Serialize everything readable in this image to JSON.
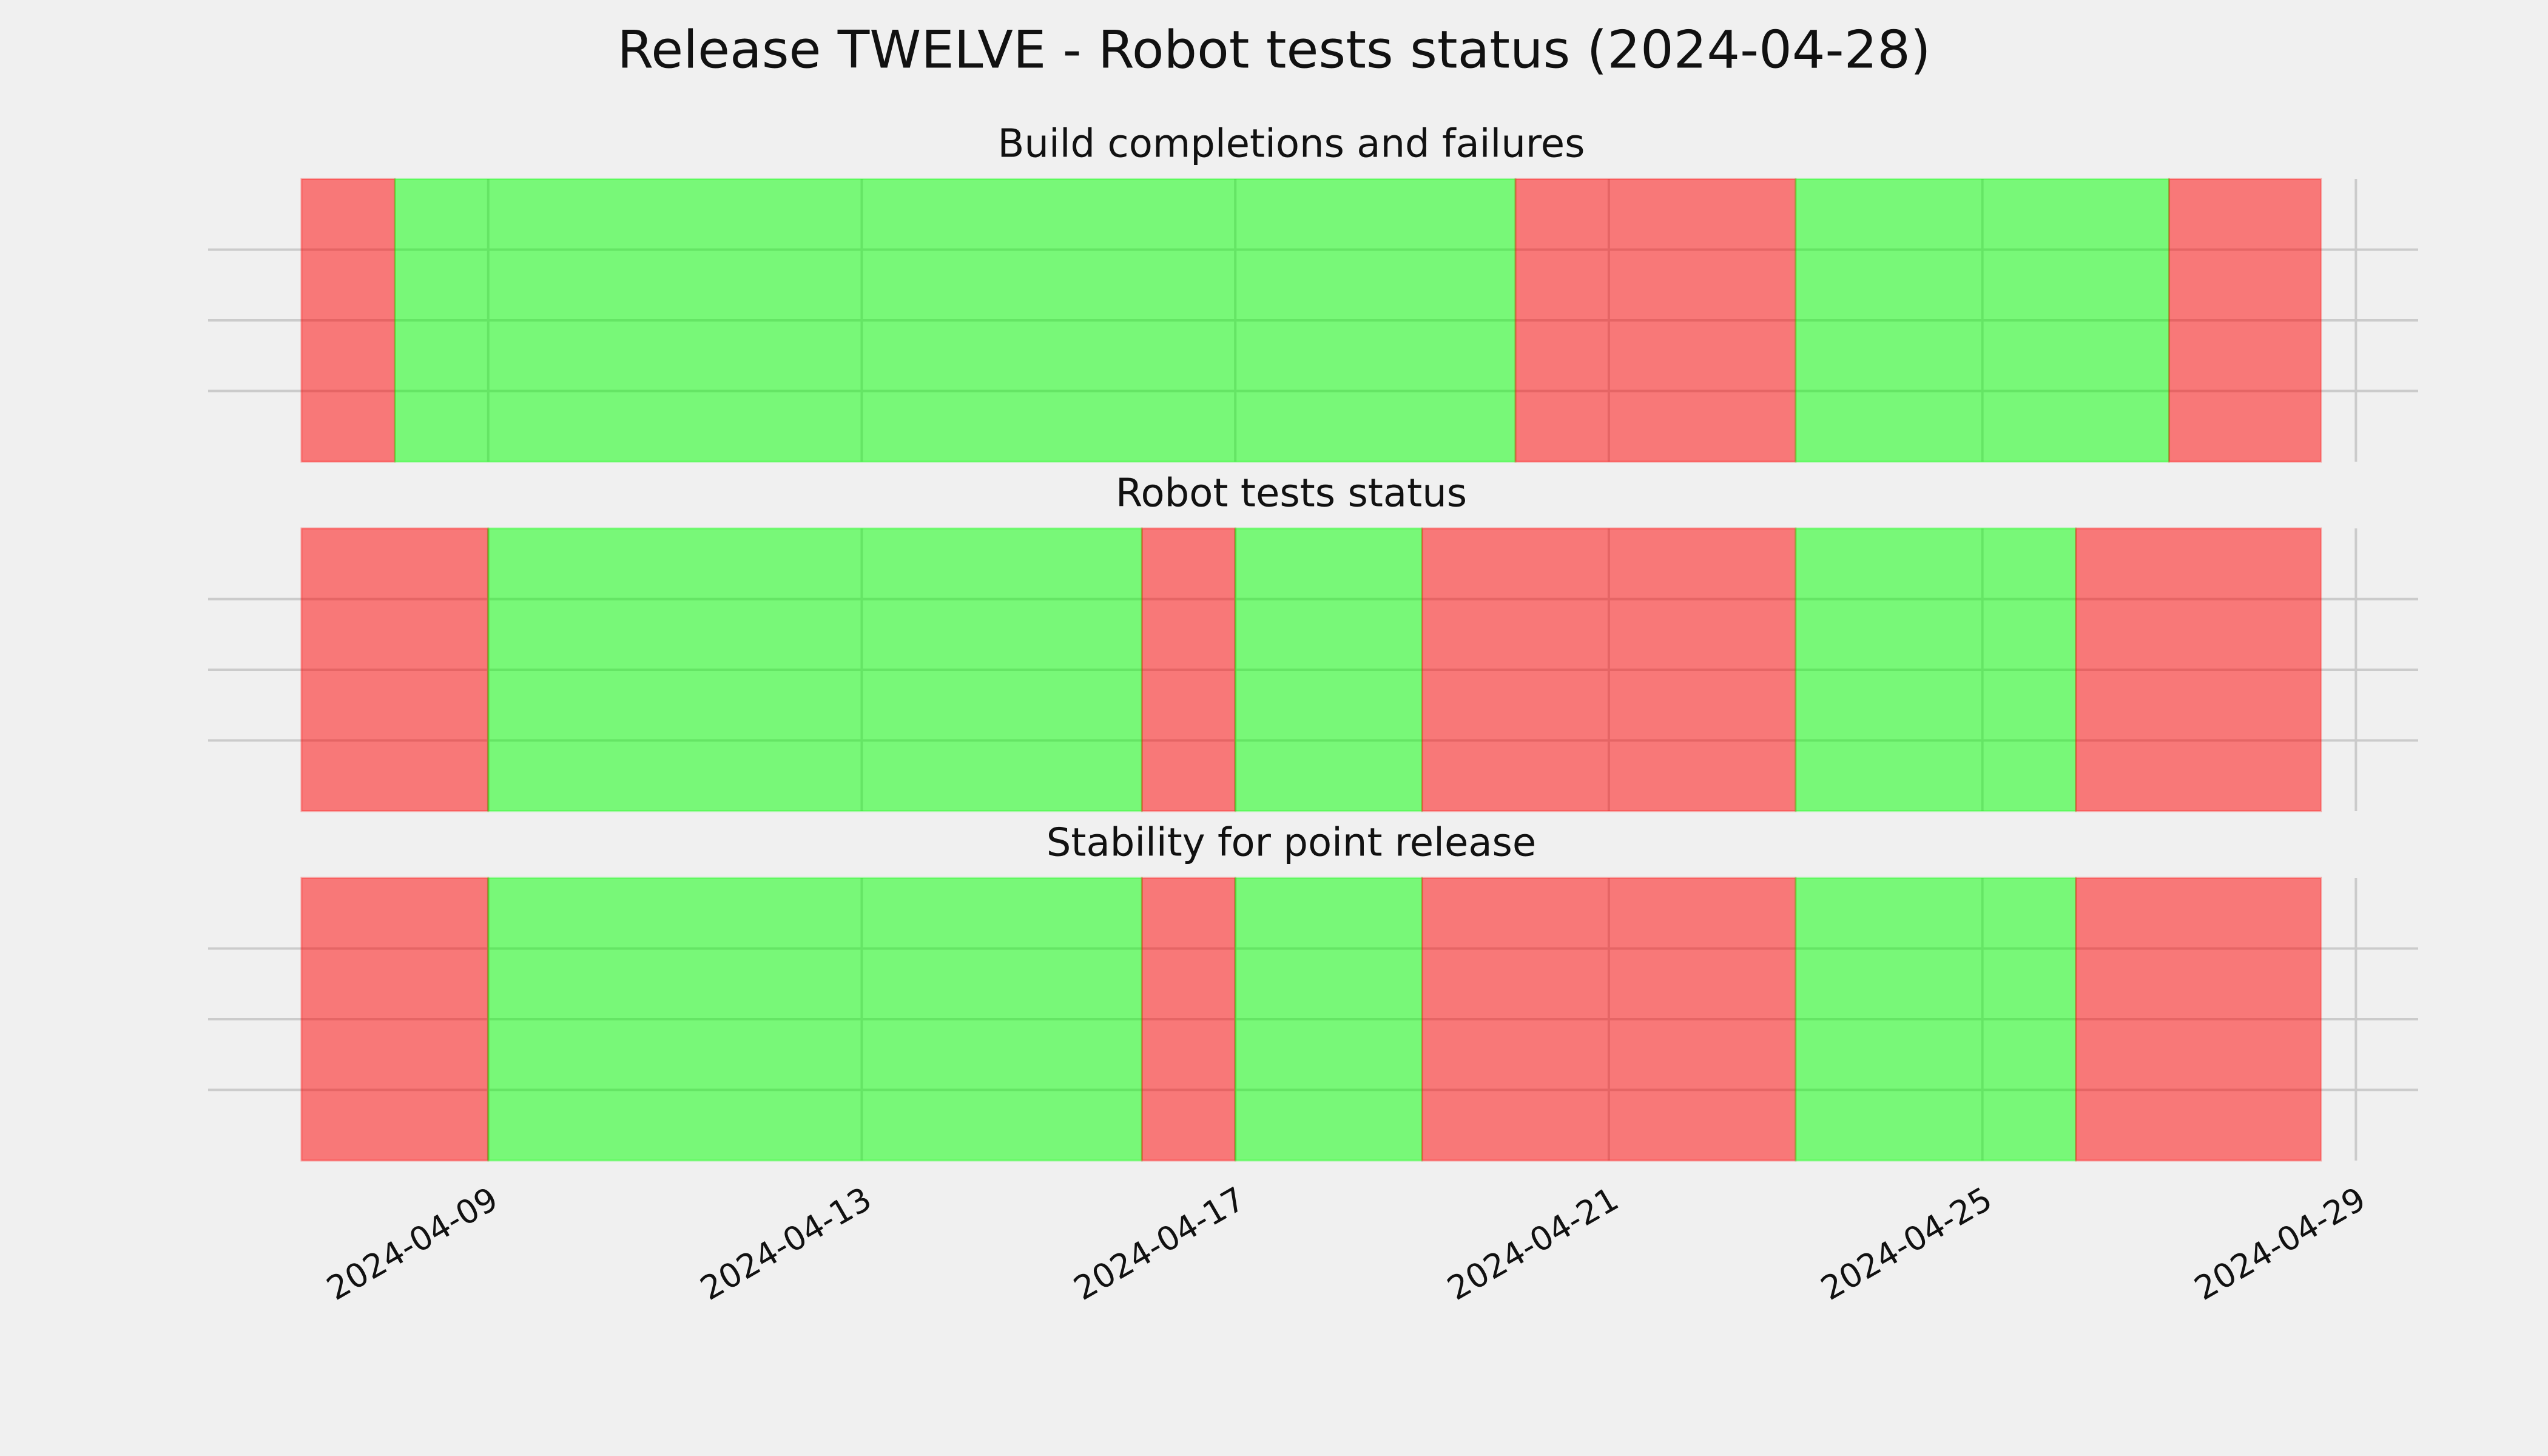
{
  "title": "Release TWELVE - Robot tests status (2024-04-28)",
  "chart_data": [
    {
      "type": "span",
      "title": "Build completions and failures",
      "xlim": [
        "2024-04-06",
        "2024-04-29T16:00"
      ],
      "xticks": [
        "2024-04-09",
        "2024-04-13",
        "2024-04-17",
        "2024-04-21",
        "2024-04-25",
        "2024-04-29"
      ],
      "ylim": [
        0,
        1
      ],
      "yticks": [
        0.25,
        0.5,
        0.75
      ],
      "grid": true,
      "alpha": 0.5,
      "spans": [
        {
          "start": "2024-04-07",
          "end": "2024-04-08",
          "color": "#ff0000"
        },
        {
          "start": "2024-04-08",
          "end": "2024-04-20",
          "color": "#00ff00"
        },
        {
          "start": "2024-04-20",
          "end": "2024-04-23",
          "color": "#ff0000"
        },
        {
          "start": "2024-04-23",
          "end": "2024-04-27",
          "color": "#00ff00"
        },
        {
          "start": "2024-04-27",
          "end": "2024-04-28T15:00",
          "color": "#ff0000"
        }
      ]
    },
    {
      "type": "span",
      "title": "Robot tests status",
      "xlim": [
        "2024-04-06",
        "2024-04-29T16:00"
      ],
      "xticks": [
        "2024-04-09",
        "2024-04-13",
        "2024-04-17",
        "2024-04-21",
        "2024-04-25",
        "2024-04-29"
      ],
      "ylim": [
        0,
        1
      ],
      "yticks": [
        0.25,
        0.5,
        0.75
      ],
      "grid": true,
      "alpha": 0.5,
      "spans": [
        {
          "start": "2024-04-07",
          "end": "2024-04-09",
          "color": "#ff0000"
        },
        {
          "start": "2024-04-09",
          "end": "2024-04-16",
          "color": "#00ff00"
        },
        {
          "start": "2024-04-16",
          "end": "2024-04-17",
          "color": "#ff0000"
        },
        {
          "start": "2024-04-17",
          "end": "2024-04-19",
          "color": "#00ff00"
        },
        {
          "start": "2024-04-19",
          "end": "2024-04-23",
          "color": "#ff0000"
        },
        {
          "start": "2024-04-23",
          "end": "2024-04-26",
          "color": "#00ff00"
        },
        {
          "start": "2024-04-26",
          "end": "2024-04-28T15:00",
          "color": "#ff0000"
        }
      ]
    },
    {
      "type": "span",
      "title": "Stability for point release",
      "xlim": [
        "2024-04-06",
        "2024-04-29T16:00"
      ],
      "xticks": [
        "2024-04-09",
        "2024-04-13",
        "2024-04-17",
        "2024-04-21",
        "2024-04-25",
        "2024-04-29"
      ],
      "ylim": [
        0,
        1
      ],
      "yticks": [
        0.25,
        0.5,
        0.75
      ],
      "grid": true,
      "alpha": 0.5,
      "spans": [
        {
          "start": "2024-04-07",
          "end": "2024-04-09",
          "color": "#ff0000"
        },
        {
          "start": "2024-04-09",
          "end": "2024-04-16",
          "color": "#00ff00"
        },
        {
          "start": "2024-04-16",
          "end": "2024-04-17",
          "color": "#ff0000"
        },
        {
          "start": "2024-04-17",
          "end": "2024-04-19",
          "color": "#00ff00"
        },
        {
          "start": "2024-04-19",
          "end": "2024-04-23",
          "color": "#ff0000"
        },
        {
          "start": "2024-04-23",
          "end": "2024-04-26",
          "color": "#00ff00"
        },
        {
          "start": "2024-04-26",
          "end": "2024-04-28T15:00",
          "color": "#ff0000"
        }
      ]
    }
  ]
}
